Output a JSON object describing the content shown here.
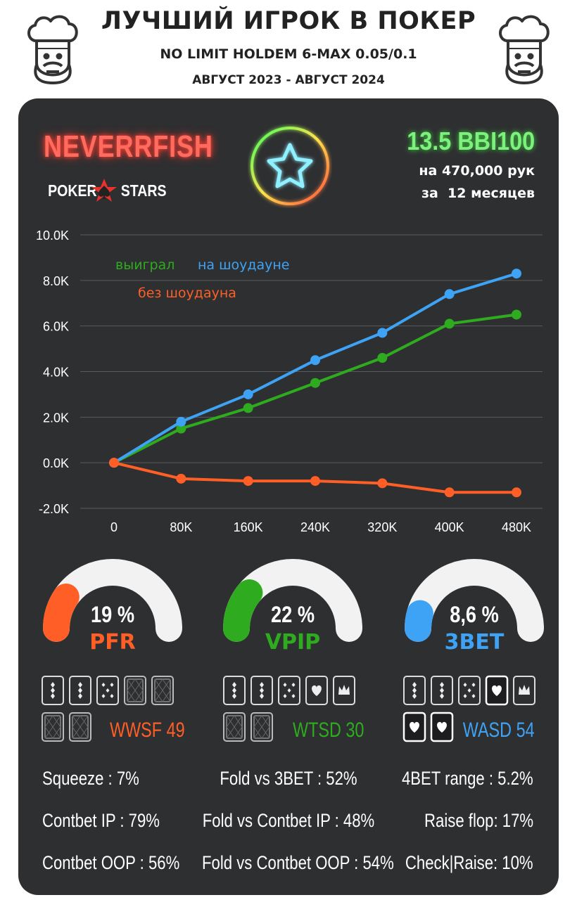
{
  "header": {
    "title": "ЛУЧШИЙ ИГРОК В ПОКЕР",
    "subtitle": "NO LIMIT HOLDEM 6-MAX 0.05/0.1",
    "period": "АВГУСТ 2023 - АВГУСТ 2024"
  },
  "player": {
    "name": "NEVERRFISH",
    "room_left": "POKER",
    "room_right": "STARS",
    "winrate": "13.5 BBI100",
    "hands": "на 470,000 рук",
    "months": "за  12 месяцев"
  },
  "colors": {
    "green": "#2eab1f",
    "blue": "#3fa3f5",
    "orange": "#ff5f27",
    "card_bg": "#2e2f31"
  },
  "chart_data": {
    "type": "line",
    "x": [
      0,
      80000,
      160000,
      240000,
      320000,
      400000,
      480000
    ],
    "x_tick_labels": [
      "0",
      "80K",
      "160K",
      "240K",
      "320K",
      "400K",
      "480K"
    ],
    "y_tick_labels": [
      "10.0K",
      "8.0K",
      "6.0K",
      "4.0K",
      "2.0K",
      "0.0K",
      "-2.0K"
    ],
    "y_ticks": [
      10000,
      8000,
      6000,
      4000,
      2000,
      0,
      -2000
    ],
    "ylim": [
      -2000,
      10000
    ],
    "grid": "horizontal",
    "series": [
      {
        "name": "выиграл",
        "color": "#2eab1f",
        "values": [
          0,
          1500,
          2400,
          3500,
          4600,
          6100,
          6500
        ]
      },
      {
        "name": "на шоудауне",
        "color": "#3fa3f5",
        "values": [
          0,
          1800,
          3000,
          4500,
          5700,
          7400,
          8300
        ]
      },
      {
        "name": "без шоудауна",
        "color": "#ff5f27",
        "values": [
          0,
          -700,
          -800,
          -800,
          -900,
          -1300,
          -1300
        ]
      }
    ]
  },
  "gauges": [
    {
      "label": "PFR",
      "value_text": "19 %",
      "fraction": 0.19,
      "color": "#ff5f27"
    },
    {
      "label": "VPIP",
      "value_text": "22 %",
      "fraction": 0.22,
      "color": "#2eab1f"
    },
    {
      "label": "3BET",
      "value_text": "8,6 %",
      "fraction": 0.086,
      "color": "#3fa3f5"
    }
  ],
  "postflop": [
    {
      "label": "WWSF 49",
      "color": "#ff5f27"
    },
    {
      "label": "WTSD 30",
      "color": "#2eab1f"
    },
    {
      "label": "WASD 54",
      "color": "#3fa3f5"
    }
  ],
  "stats": {
    "left": [
      "Squeeze : 7%",
      "Contbet IP : 79%",
      "Contbet OOP : 56%"
    ],
    "center": [
      "Fold vs 3BET : 52%",
      "Fold vs Contbet IP : 48%",
      "Fold vs Contbet OOP : 54%"
    ],
    "right": [
      "4BET range : 5.2%",
      "Raise flop: 17%",
      "Check|Raise: 10%"
    ]
  }
}
